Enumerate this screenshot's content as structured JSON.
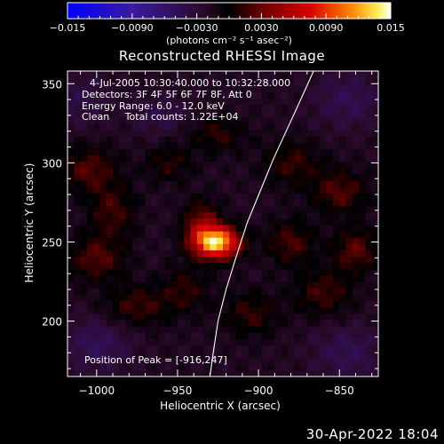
{
  "chart_data": {
    "type": "heatmap",
    "title": "Reconstructed RHESSI Image",
    "xlabel": "Heliocentric X (arcsec)",
    "ylabel": "Heliocentric Y (arcsec)",
    "xlim": [
      -1018,
      -826
    ],
    "ylim": [
      165,
      358
    ],
    "xticks": [
      {
        "value": -1000,
        "label": "−1000"
      },
      {
        "value": -950,
        "label": "−950"
      },
      {
        "value": -900,
        "label": "−900"
      },
      {
        "value": -850,
        "label": "−850"
      }
    ],
    "yticks": [
      {
        "value": 200,
        "label": "200"
      },
      {
        "value": 250,
        "label": "250"
      },
      {
        "value": 300,
        "label": "300"
      },
      {
        "value": 350,
        "label": "350"
      }
    ],
    "colorbar": {
      "range": [
        -0.015,
        0.015
      ],
      "ticks": [
        {
          "value": -0.015,
          "label": "−0.015"
        },
        {
          "value": -0.009,
          "label": "−0.0090"
        },
        {
          "value": -0.003,
          "label": "−0.0030"
        },
        {
          "value": 0.003,
          "label": "0.0030"
        },
        {
          "value": 0.009,
          "label": "0.0090"
        },
        {
          "value": 0.015,
          "label": "0.015"
        }
      ],
      "unit_label": "(photons cm⁻² s⁻¹ asec⁻²)"
    },
    "annotations": [
      "4-Jul-2005 10:30:40.000 to 10:32:28.000",
      "Detectors: 3F 4F 5F 6F 7F 8F, Att 0",
      "Energy Range: 6.0 - 12.0 keV",
      "Clean     Total counts: 1.22E+04",
      "Position of Peak = [-916,247]"
    ],
    "peak": {
      "x": -916,
      "y": 247
    },
    "sources": [
      {
        "x": -926,
        "y": 250,
        "sx": 10,
        "sy": 7,
        "amp": 0.015
      },
      {
        "x": -935,
        "y": 262,
        "sx": 8,
        "sy": 10,
        "amp": 0.005
      },
      {
        "x": -1005,
        "y": 296,
        "sx": 12,
        "sy": 10,
        "amp": 0.004
      },
      {
        "x": -990,
        "y": 270,
        "sx": 10,
        "sy": 12,
        "amp": 0.0035
      },
      {
        "x": -1000,
        "y": 240,
        "sx": 12,
        "sy": 10,
        "amp": 0.004
      },
      {
        "x": -975,
        "y": 210,
        "sx": 14,
        "sy": 9,
        "amp": 0.0035
      },
      {
        "x": -955,
        "y": 300,
        "sx": 10,
        "sy": 8,
        "amp": 0.0028
      },
      {
        "x": -925,
        "y": 318,
        "sx": 12,
        "sy": 8,
        "amp": 0.003
      },
      {
        "x": -880,
        "y": 300,
        "sx": 12,
        "sy": 10,
        "amp": 0.0032
      },
      {
        "x": -850,
        "y": 282,
        "sx": 12,
        "sy": 10,
        "amp": 0.004
      },
      {
        "x": -880,
        "y": 250,
        "sx": 10,
        "sy": 10,
        "amp": 0.0038
      },
      {
        "x": -840,
        "y": 245,
        "sx": 10,
        "sy": 10,
        "amp": 0.0042
      },
      {
        "x": -860,
        "y": 218,
        "sx": 12,
        "sy": 10,
        "amp": 0.0035
      },
      {
        "x": -905,
        "y": 205,
        "sx": 12,
        "sy": 10,
        "amp": 0.0032
      },
      {
        "x": -945,
        "y": 220,
        "sx": 10,
        "sy": 10,
        "amp": 0.003
      },
      {
        "x": -960,
        "y": 330,
        "sx": 12,
        "sy": 8,
        "amp": -0.002
      },
      {
        "x": -1000,
        "y": 185,
        "sx": 14,
        "sy": 12,
        "amp": -0.003
      },
      {
        "x": -845,
        "y": 180,
        "sx": 14,
        "sy": 12,
        "amp": -0.0025
      },
      {
        "x": -845,
        "y": 340,
        "sx": 14,
        "sy": 12,
        "amp": -0.0025
      },
      {
        "x": -1010,
        "y": 340,
        "sx": 12,
        "sy": 12,
        "amp": -0.002
      }
    ],
    "limb_curve": [
      {
        "x": -930,
        "y": 165
      },
      {
        "x": -928,
        "y": 180
      },
      {
        "x": -925,
        "y": 200
      },
      {
        "x": -920,
        "y": 220
      },
      {
        "x": -914,
        "y": 240
      },
      {
        "x": -907,
        "y": 262
      },
      {
        "x": -899,
        "y": 282
      },
      {
        "x": -891,
        "y": 302
      },
      {
        "x": -882,
        "y": 322
      },
      {
        "x": -873,
        "y": 342
      },
      {
        "x": -866,
        "y": 358
      }
    ]
  },
  "footer": {
    "timestamp": "30-Apr-2022 18:04"
  }
}
